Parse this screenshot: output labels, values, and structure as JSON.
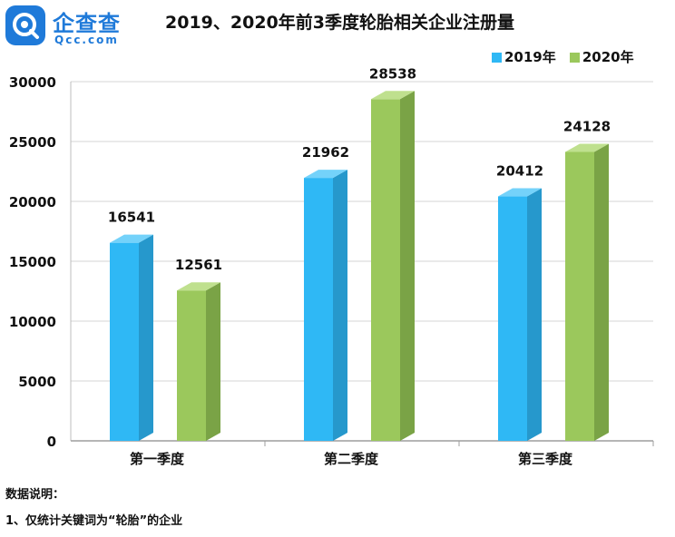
{
  "brand": {
    "name_cn": "企查查",
    "name_en": "Qcc.com",
    "color": "#1f7ad9"
  },
  "chart_data": {
    "type": "bar",
    "title": "2019、2020年前3季度轮胎相关企业注册量",
    "categories": [
      "第一季度",
      "第二季度",
      "第三季度"
    ],
    "series": [
      {
        "name": "2019年",
        "values": [
          16541,
          21962,
          20412
        ],
        "color": "#2fb8f5",
        "side_color": "#2698cc",
        "top_color": "#74d2fa"
      },
      {
        "name": "2020年",
        "values": [
          12561,
          28538,
          24128
        ],
        "color": "#9bc85c",
        "side_color": "#7aa346",
        "top_color": "#bfe08e"
      }
    ],
    "ylim": [
      0,
      30000
    ],
    "yticks": [
      0,
      5000,
      10000,
      15000,
      20000,
      25000,
      30000
    ],
    "grid": true,
    "legend_position": "top-right"
  },
  "notes": {
    "heading": "数据说明：",
    "items": [
      "1、仅统计关键词为“轮胎”的企业"
    ]
  }
}
